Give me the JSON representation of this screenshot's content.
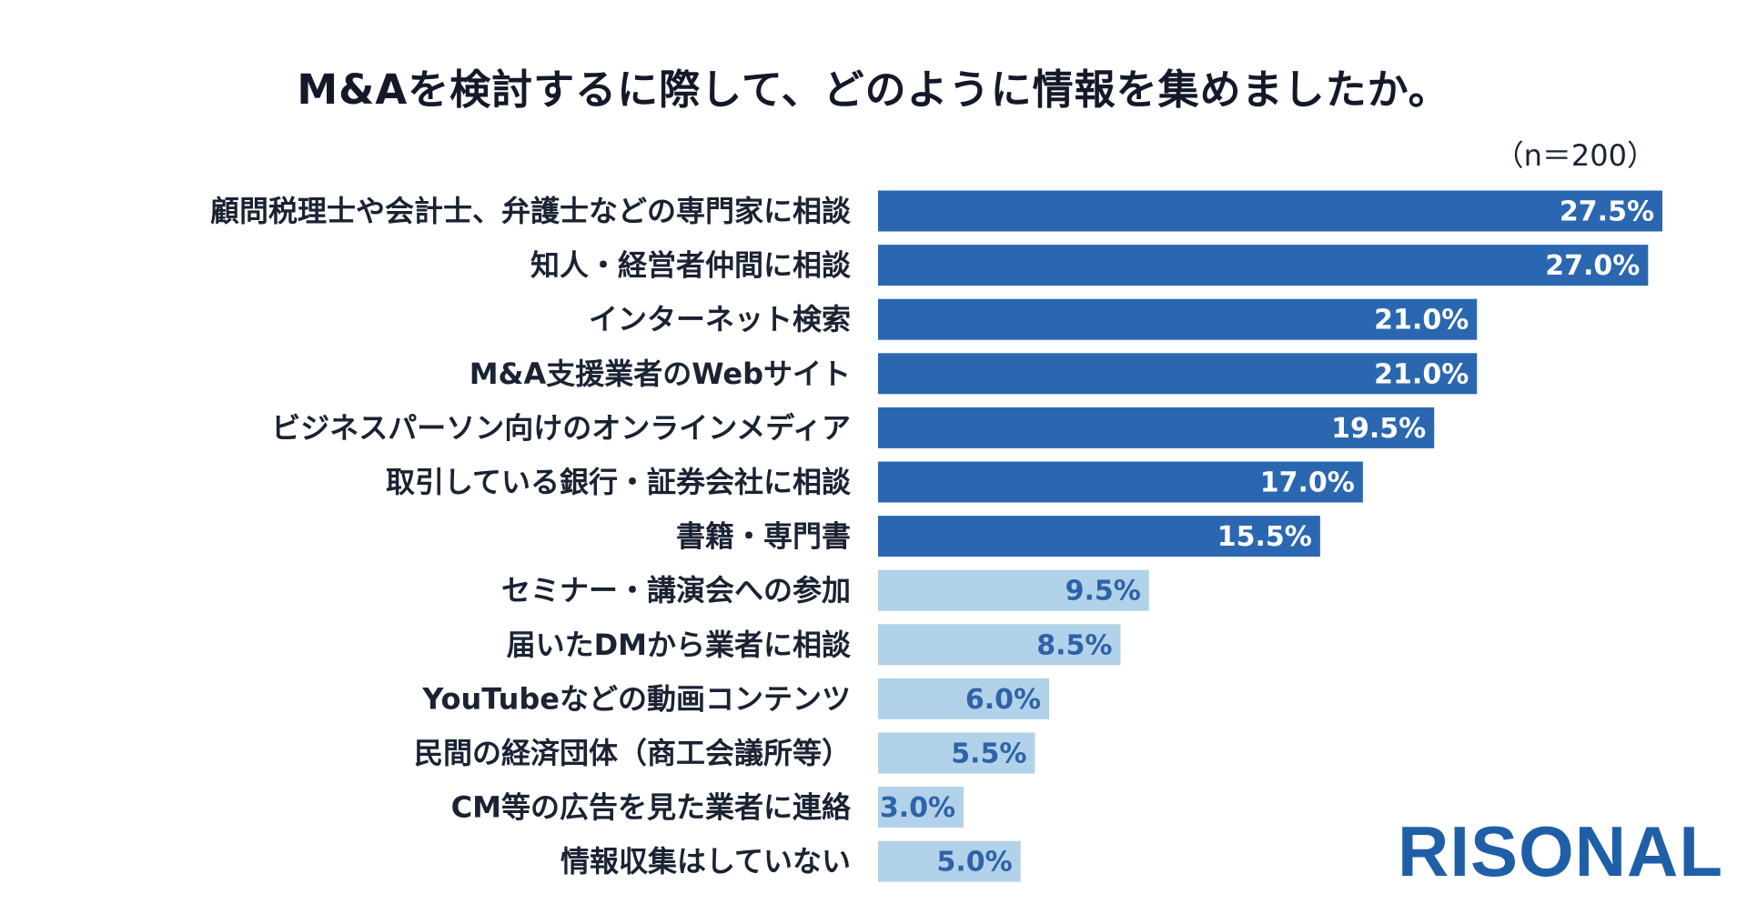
{
  "header": {
    "title": "M&Aを検討するに際して、どのように情報を集めましたか。",
    "sample_size": "（n＝200）"
  },
  "logo": {
    "text": "RISONAL"
  },
  "colors": {
    "dark_bar": "#2b67b1",
    "light_bar": "#b1d2e8",
    "dark_value_text": "#ffffff",
    "light_value_text": "#2f62a9",
    "logo": "#1f5fa8"
  },
  "chart_data": {
    "type": "bar",
    "orientation": "horizontal",
    "unit": "%",
    "xlim": [
      0,
      27.5
    ],
    "categories": [
      "顧問税理士や会計士、弁護士などの専門家に相談",
      "知人・経営者仲間に相談",
      "インターネット検索",
      "M&A支援業者のWebサイト",
      "ビジネスパーソン向けのオンラインメディア",
      "取引している銀行・証券会社に相談",
      "書籍・専門書",
      "セミナー・講演会への参加",
      "届いたDMから業者に相談",
      "YouTubeなどの動画コンテンツ",
      "民間の経済団体（商工会議所等）",
      "CM等の広告を見た業者に連絡",
      "情報収集はしていない"
    ],
    "values": [
      27.5,
      27.0,
      21.0,
      21.0,
      19.5,
      17.0,
      15.5,
      9.5,
      8.5,
      6.0,
      5.5,
      3.0,
      5.0
    ],
    "value_labels": [
      "27.5%",
      "27.0%",
      "21.0%",
      "21.0%",
      "19.5%",
      "17.0%",
      "15.5%",
      "9.5%",
      "8.5%",
      "6.0%",
      "5.5%",
      "3.0%",
      "5.0%"
    ],
    "highlight": [
      true,
      true,
      true,
      true,
      true,
      true,
      true,
      false,
      false,
      false,
      false,
      false,
      false
    ],
    "grid": false,
    "legend": "none"
  }
}
